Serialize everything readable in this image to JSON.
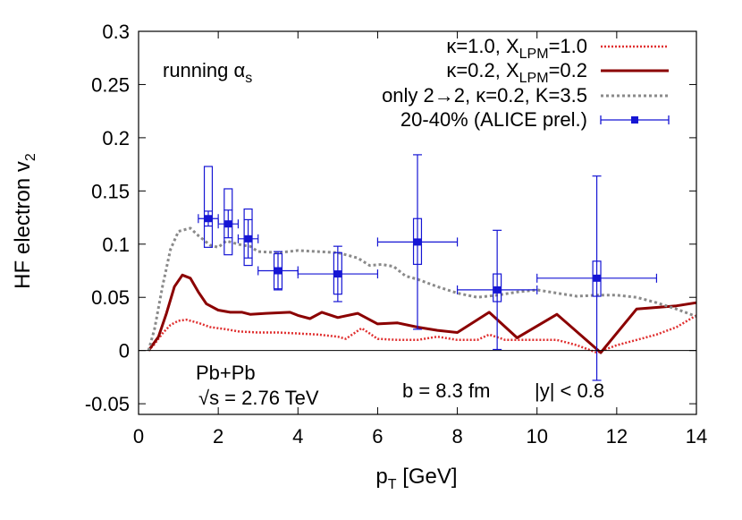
{
  "chart_data": {
    "type": "line",
    "xlim": [
      0,
      14
    ],
    "ylim": [
      -0.06,
      0.3
    ],
    "x_ticks": [
      "0",
      "2",
      "4",
      "6",
      "8",
      "10",
      "12",
      "14"
    ],
    "y_ticks": [
      "-0.05",
      "0",
      "0.05",
      "0.1",
      "0.15",
      "0.2",
      "0.25",
      "0.3"
    ],
    "x_tick_values": [
      0,
      2,
      4,
      6,
      8,
      10,
      12,
      14
    ],
    "y_tick_values": [
      -0.05,
      0,
      0.05,
      0.1,
      0.15,
      0.2,
      0.25,
      0.3
    ],
    "xlabel": {
      "main": "p",
      "sub": "T",
      "rest": " [GeV]"
    },
    "ylabel": {
      "main": "HF electron v",
      "sub": "2"
    },
    "grid": false,
    "legend_position": "top-right",
    "annotations": {
      "running": {
        "main": "running α",
        "sub": "s"
      },
      "system": "Pb+Pb",
      "energy": "√s = 2.76 TeV",
      "impact": "b = 8.3 fm",
      "rapidity": "|y| < 0.8"
    },
    "series": [
      {
        "legend": {
          "p1": "κ=1.0, X",
          "sub1": "LPM",
          "p2": "=1.0"
        },
        "color": "#e03030",
        "style": "dotted",
        "points": [
          [
            0.25,
            0.0
          ],
          [
            0.4,
            0.006
          ],
          [
            0.6,
            0.016
          ],
          [
            0.8,
            0.024
          ],
          [
            1.0,
            0.028
          ],
          [
            1.2,
            0.029
          ],
          [
            1.5,
            0.026
          ],
          [
            1.8,
            0.022
          ],
          [
            2.2,
            0.02
          ],
          [
            2.5,
            0.018
          ],
          [
            3.0,
            0.017
          ],
          [
            3.5,
            0.017
          ],
          [
            4.0,
            0.016
          ],
          [
            4.5,
            0.015
          ],
          [
            5.0,
            0.013
          ],
          [
            5.2,
            0.011
          ],
          [
            5.6,
            0.021
          ],
          [
            6.0,
            0.011
          ],
          [
            6.5,
            0.01
          ],
          [
            7.0,
            0.01
          ],
          [
            7.5,
            0.013
          ],
          [
            8.0,
            0.01
          ],
          [
            8.5,
            0.01
          ],
          [
            8.8,
            0.015
          ],
          [
            9.2,
            0.01
          ],
          [
            9.8,
            0.01
          ],
          [
            10.5,
            0.01
          ],
          [
            11.0,
            0.005
          ],
          [
            11.5,
            -0.002
          ],
          [
            12.0,
            0.005
          ],
          [
            12.5,
            0.01
          ],
          [
            13.0,
            0.015
          ],
          [
            13.5,
            0.022
          ],
          [
            14.0,
            0.033
          ]
        ]
      },
      {
        "legend": {
          "p1": "κ=0.2, X",
          "sub1": "LPM",
          "p2": "=0.2"
        },
        "color": "#8b0000",
        "style": "solid",
        "points": [
          [
            0.25,
            0.0
          ],
          [
            0.5,
            0.013
          ],
          [
            0.7,
            0.035
          ],
          [
            0.9,
            0.06
          ],
          [
            1.1,
            0.071
          ],
          [
            1.3,
            0.068
          ],
          [
            1.5,
            0.055
          ],
          [
            1.7,
            0.044
          ],
          [
            2.0,
            0.038
          ],
          [
            2.3,
            0.036
          ],
          [
            2.6,
            0.036
          ],
          [
            2.8,
            0.034
          ],
          [
            3.2,
            0.035
          ],
          [
            3.8,
            0.036
          ],
          [
            4.0,
            0.033
          ],
          [
            4.3,
            0.03
          ],
          [
            4.6,
            0.036
          ],
          [
            5.0,
            0.031
          ],
          [
            5.5,
            0.035
          ],
          [
            6.0,
            0.025
          ],
          [
            6.5,
            0.026
          ],
          [
            7.0,
            0.022
          ],
          [
            7.5,
            0.019
          ],
          [
            8.0,
            0.017
          ],
          [
            8.8,
            0.036
          ],
          [
            9.5,
            0.012
          ],
          [
            10.5,
            0.034
          ],
          [
            11.6,
            -0.002
          ],
          [
            12.5,
            0.039
          ],
          [
            13.5,
            0.042
          ],
          [
            14.0,
            0.045
          ]
        ]
      },
      {
        "legend": {
          "p1": "only 2→2, κ=0.2, K=3.5"
        },
        "color": "#8a8a8a",
        "style": "dashed",
        "points": [
          [
            0.25,
            0.0
          ],
          [
            0.4,
            0.02
          ],
          [
            0.6,
            0.06
          ],
          [
            0.8,
            0.095
          ],
          [
            1.0,
            0.112
          ],
          [
            1.3,
            0.115
          ],
          [
            1.5,
            0.108
          ],
          [
            1.8,
            0.099
          ],
          [
            2.0,
            0.097
          ],
          [
            2.2,
            0.103
          ],
          [
            2.4,
            0.101
          ],
          [
            2.6,
            0.099
          ],
          [
            2.8,
            0.098
          ],
          [
            3.0,
            0.093
          ],
          [
            3.5,
            0.092
          ],
          [
            4.0,
            0.094
          ],
          [
            4.5,
            0.093
          ],
          [
            5.0,
            0.092
          ],
          [
            5.5,
            0.087
          ],
          [
            5.8,
            0.08
          ],
          [
            6.1,
            0.081
          ],
          [
            6.4,
            0.079
          ],
          [
            6.7,
            0.07
          ],
          [
            7.0,
            0.067
          ],
          [
            7.5,
            0.06
          ],
          [
            8.0,
            0.054
          ],
          [
            8.5,
            0.05
          ],
          [
            9.0,
            0.052
          ],
          [
            9.5,
            0.055
          ],
          [
            10.0,
            0.057
          ],
          [
            10.5,
            0.054
          ],
          [
            11.0,
            0.051
          ],
          [
            11.5,
            0.052
          ],
          [
            12.0,
            0.052
          ],
          [
            12.5,
            0.05
          ],
          [
            13.0,
            0.045
          ],
          [
            13.5,
            0.039
          ],
          [
            14.0,
            0.032
          ]
        ]
      }
    ],
    "data_series": {
      "legend": "20-40% (ALICE prel.)",
      "color": "#1515d4",
      "points": [
        {
          "x": 1.75,
          "y": 0.124,
          "xerr": 0.25,
          "yerr": 0.007,
          "sys_lo": 0.097,
          "sys_hi": 0.173,
          "sys_w": 0.2
        },
        {
          "x": 2.25,
          "y": 0.119,
          "xerr": 0.25,
          "yerr": 0.013,
          "sys_lo": 0.09,
          "sys_hi": 0.152,
          "sys_w": 0.2
        },
        {
          "x": 2.75,
          "y": 0.105,
          "xerr": 0.25,
          "yerr": 0.018,
          "sys_lo": 0.08,
          "sys_hi": 0.133,
          "sys_w": 0.2
        },
        {
          "x": 3.5,
          "y": 0.075,
          "xerr": 0.5,
          "yerr": 0.018,
          "sys_lo": 0.058,
          "sys_hi": 0.091,
          "sys_w": 0.2
        },
        {
          "x": 5.0,
          "y": 0.072,
          "xerr": 1.0,
          "yerr": 0.026,
          "sys_lo": 0.053,
          "sys_hi": 0.092,
          "sys_w": 0.2
        },
        {
          "x": 7.0,
          "y": 0.102,
          "xerr": 1.0,
          "yerr": 0.082,
          "sys_lo": 0.081,
          "sys_hi": 0.124,
          "sys_w": 0.2
        },
        {
          "x": 9.0,
          "y": 0.057,
          "xerr": 1.0,
          "yerr": 0.056,
          "sys_lo": 0.046,
          "sys_hi": 0.072,
          "sys_w": 0.2
        },
        {
          "x": 11.5,
          "y": 0.068,
          "xerr": 1.5,
          "yerr": 0.096,
          "sys_lo": 0.051,
          "sys_hi": 0.084,
          "sys_w": 0.2
        }
      ]
    }
  }
}
